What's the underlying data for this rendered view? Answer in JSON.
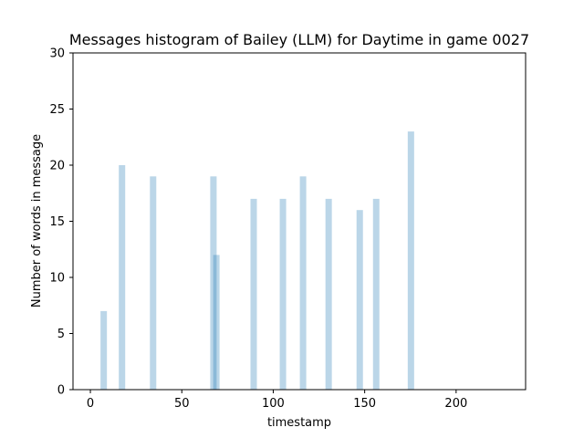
{
  "chart_data": {
    "type": "bar",
    "title": "Messages histogram of Bailey (LLM) for Daytime in game 0027",
    "xlabel": "timestamp",
    "ylabel": "Number of words in message",
    "xlim": [
      -9.5,
      238
    ],
    "ylim": [
      0,
      30
    ],
    "xticks": [
      0,
      50,
      100,
      150,
      200
    ],
    "yticks": [
      0,
      5,
      10,
      15,
      20,
      25,
      30
    ],
    "bar_width": 3.5,
    "bar_color": "#1f77b4",
    "bar_opacity": 0.3,
    "grid": false,
    "bars": [
      {
        "x": 7.3,
        "value": 7
      },
      {
        "x": 17.3,
        "value": 20
      },
      {
        "x": 34.3,
        "value": 19
      },
      {
        "x": 67.3,
        "value": 19
      },
      {
        "x": 68.9,
        "value": 12
      },
      {
        "x": 89.3,
        "value": 17
      },
      {
        "x": 105.3,
        "value": 17
      },
      {
        "x": 116.3,
        "value": 19
      },
      {
        "x": 130.3,
        "value": 17
      },
      {
        "x": 147.3,
        "value": 16
      },
      {
        "x": 156.3,
        "value": 17
      },
      {
        "x": 175.3,
        "value": 23
      }
    ]
  }
}
